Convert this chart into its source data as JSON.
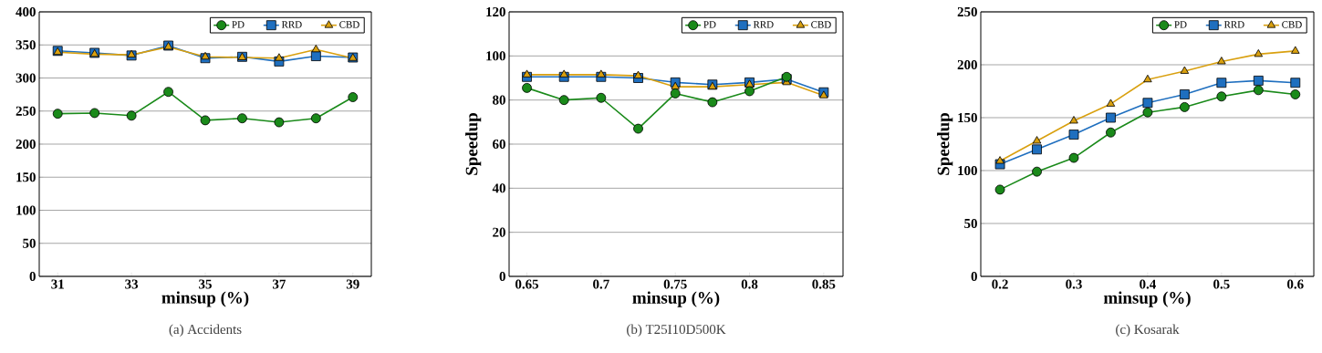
{
  "chart_data": [
    {
      "type": "line",
      "title": "(a)  Accidents",
      "xlabel": "minsup (%)",
      "x": [
        31,
        32,
        33,
        34,
        35,
        36,
        37,
        38,
        39
      ],
      "xlim": [
        30.5,
        39.5
      ],
      "xticks": [
        31,
        33,
        35,
        37,
        39
      ],
      "ylim": [
        0,
        400
      ],
      "yticks": [
        0,
        50,
        100,
        150,
        200,
        250,
        300,
        350,
        400
      ],
      "grid": "y",
      "legend": "top right",
      "series": [
        {
          "name": "PD",
          "color": "#1a8a1a",
          "marker": "circle",
          "values": [
            246,
            247,
            243,
            279,
            236,
            239,
            233,
            239,
            271
          ]
        },
        {
          "name": "RRD",
          "color": "#1f6fbf",
          "marker": "square",
          "values": [
            341,
            338,
            334,
            349,
            330,
            332,
            325,
            333,
            331
          ]
        },
        {
          "name": "CBD",
          "color": "#d9a00f",
          "marker": "triangle",
          "values": [
            339,
            336,
            335,
            347,
            332,
            331,
            330,
            343,
            330
          ]
        }
      ]
    },
    {
      "type": "line",
      "title": "(b)  T25I10D500K",
      "xlabel": "minsup (%)",
      "ylabel": "Speedup",
      "x": [
        0.65,
        0.675,
        0.7,
        0.725,
        0.75,
        0.775,
        0.8,
        0.825,
        0.85
      ],
      "xlim": [
        0.638,
        0.863
      ],
      "xticks": [
        0.65,
        0.7,
        0.75,
        0.8,
        0.85
      ],
      "ylim": [
        0,
        120
      ],
      "yticks": [
        0,
        20,
        40,
        60,
        80,
        100,
        120
      ],
      "grid": "y",
      "legend": "top right",
      "series": [
        {
          "name": "PD",
          "color": "#1a8a1a",
          "marker": "circle",
          "values": [
            85.5,
            80,
            81,
            67,
            83,
            79,
            84,
            90.5,
            null
          ]
        },
        {
          "name": "RRD",
          "color": "#1f6fbf",
          "marker": "square",
          "values": [
            90.5,
            90.5,
            90.5,
            90,
            88,
            87,
            88,
            89.5,
            83.5
          ]
        },
        {
          "name": "CBD",
          "color": "#d9a00f",
          "marker": "triangle",
          "values": [
            91.5,
            91.5,
            91.5,
            91,
            86,
            86,
            87,
            88,
            82
          ]
        }
      ]
    },
    {
      "type": "line",
      "title": "(c)  Kosarak",
      "xlabel": "minsup (%)",
      "ylabel": "Speedup",
      "x": [
        0.2,
        0.25,
        0.3,
        0.35,
        0.4,
        0.45,
        0.5,
        0.55,
        0.6
      ],
      "xlim": [
        0.174,
        0.625
      ],
      "xticks": [
        0.2,
        0.3,
        0.4,
        0.5,
        0.6
      ],
      "ylim": [
        0,
        250
      ],
      "yticks": [
        0,
        50,
        100,
        150,
        200,
        250
      ],
      "grid": "y",
      "legend": "top right",
      "series": [
        {
          "name": "PD",
          "color": "#1a8a1a",
          "marker": "circle",
          "values": [
            82,
            99,
            112,
            136,
            155,
            160,
            170,
            176,
            172
          ]
        },
        {
          "name": "RRD",
          "color": "#1f6fbf",
          "marker": "square",
          "values": [
            106,
            120,
            134,
            150,
            164,
            172,
            183,
            185,
            183
          ]
        },
        {
          "name": "CBD",
          "color": "#d9a00f",
          "marker": "triangle",
          "values": [
            109,
            128,
            147,
            163,
            186,
            194,
            203,
            210,
            213
          ]
        }
      ]
    }
  ]
}
